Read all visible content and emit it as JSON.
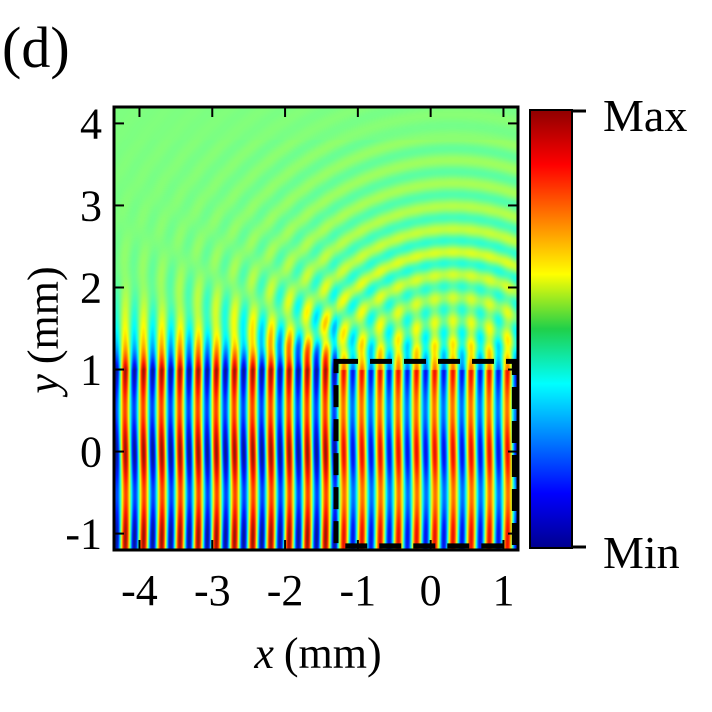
{
  "panel_label": "(d)",
  "chart_data": {
    "type": "heatmap",
    "title": "",
    "xlabel": "x (mm)",
    "xlabel_var": "x",
    "xlabel_unit": "(mm)",
    "ylabel": "y (mm)",
    "ylabel_var": "y",
    "ylabel_unit": "(mm)",
    "xlim": [
      -4.35,
      1.2
    ],
    "ylim": [
      -1.2,
      4.2
    ],
    "x_ticks": [
      -4,
      -3,
      -2,
      -1,
      0,
      1
    ],
    "x_tick_labels": [
      "-4",
      "-3",
      "-2",
      "-1",
      "0",
      "1"
    ],
    "y_ticks": [
      -1,
      0,
      1,
      2,
      3,
      4
    ],
    "y_tick_labels": [
      "-1",
      "0",
      "1",
      "2",
      "3",
      "4"
    ],
    "colormap": "jet",
    "colorbar": {
      "max_label": "Max",
      "min_label": "Min"
    },
    "field": {
      "description": "standing-wave field, vertical fringes in y<1, circular ripples above",
      "fringe_period_mm": 0.25,
      "region_boundary_y": 1.0
    },
    "highlight_box": {
      "x": [
        -1.3,
        1.15
      ],
      "y": [
        -1.15,
        1.1
      ],
      "style": "dashed",
      "color": "#000000"
    }
  }
}
